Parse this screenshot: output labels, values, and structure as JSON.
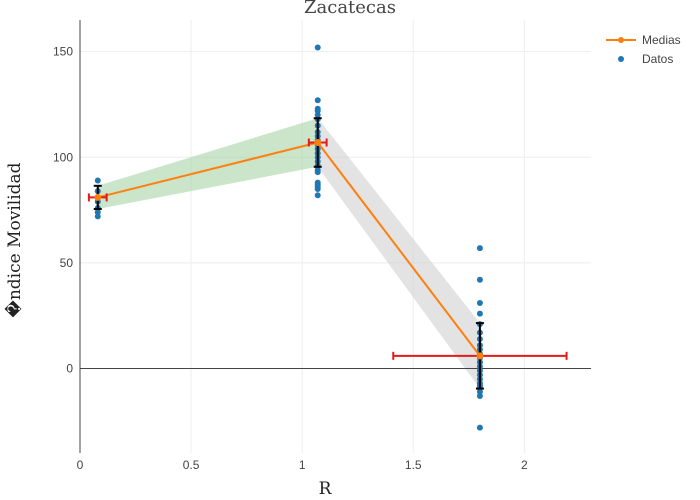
{
  "chart_data": {
    "type": "scatter",
    "title": "Zacatecas",
    "xlabel": "R",
    "ylabel": "�ndice Movilidad",
    "xlim": [
      0,
      2.3
    ],
    "ylim": [
      -40,
      165
    ],
    "x_ticks": [
      0,
      0.5,
      1,
      1.5,
      2
    ],
    "x_tick_labels": [
      "0",
      "0.5",
      "1",
      "1.5",
      "2"
    ],
    "y_ticks": [
      0,
      50,
      100,
      150
    ],
    "y_tick_labels": [
      "0",
      "50",
      "100",
      "150"
    ],
    "grid": true,
    "legend_position": "top-right",
    "colors": {
      "medias": "#ff7f0e",
      "datos": "#1f77b4",
      "band_1": "#a6d4a6",
      "band_2": "#d0d0d0",
      "xerror": "#e41a1c",
      "yerror": "#000000",
      "zero_line": "#444444",
      "grid": "#eeeeee"
    },
    "series": [
      {
        "name": "Medias",
        "mode": "lines+markers",
        "x": [
          0.08,
          1.07,
          1.8
        ],
        "y": [
          81,
          107,
          6
        ],
        "x_error": [
          0.04,
          0.04,
          0.39
        ],
        "y_error": [
          5.5,
          11.5,
          15.5
        ]
      },
      {
        "name": "Datos",
        "mode": "markers",
        "x": [
          0.08,
          0.08,
          0.08,
          0.08,
          0.08,
          0.08,
          0.08,
          1.07,
          1.07,
          1.07,
          1.07,
          1.07,
          1.07,
          1.07,
          1.07,
          1.07,
          1.07,
          1.07,
          1.07,
          1.07,
          1.07,
          1.07,
          1.07,
          1.07,
          1.07,
          1.07,
          1.07,
          1.07,
          1.07,
          1.07,
          1.8,
          1.8,
          1.8,
          1.8,
          1.8,
          1.8,
          1.8,
          1.8,
          1.8,
          1.8,
          1.8,
          1.8,
          1.8,
          1.8,
          1.8,
          1.8,
          1.8,
          1.8,
          1.8,
          1.8,
          1.8,
          1.8
        ],
        "y": [
          89,
          84,
          81,
          79,
          76,
          74,
          72,
          152,
          127,
          123,
          122,
          120,
          118,
          115,
          112,
          110,
          108,
          106,
          104,
          102,
          100,
          98,
          96,
          94,
          93,
          88,
          87,
          86,
          85,
          82,
          57,
          42,
          31,
          26,
          21,
          17,
          14,
          11,
          9,
          7,
          5,
          3,
          1,
          -1,
          -3,
          -5,
          -7,
          -8,
          -9,
          -11,
          -13,
          -28
        ]
      }
    ],
    "bands": [
      {
        "x": [
          0.08,
          1.07
        ],
        "upper": [
          86.5,
          118.5
        ],
        "lower": [
          75.5,
          95.5
        ]
      },
      {
        "x": [
          1.07,
          1.8
        ],
        "upper": [
          118.5,
          21.5
        ],
        "lower": [
          95.5,
          -9.5
        ]
      }
    ]
  }
}
